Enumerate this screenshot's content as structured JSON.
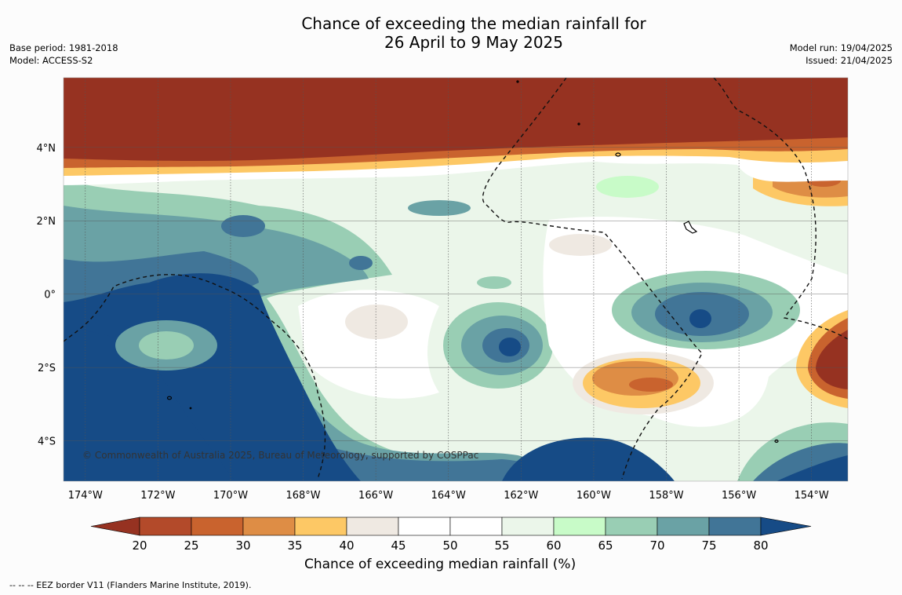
{
  "title": {
    "line1": "Chance of exceeding the median rainfall for",
    "line2": "26 April to 9 May 2025"
  },
  "meta_left": {
    "base_period": "Base period: 1981-2018",
    "model": "Model: ACCESS-S2"
  },
  "meta_right": {
    "model_run": "Model run: 19/04/2025",
    "issued": "Issued: 21/04/2025"
  },
  "map": {
    "lon_range": [
      -174.6,
      -153.0
    ],
    "lat_range": [
      -5.1,
      5.9
    ],
    "lon_ticks": [
      "174°W",
      "172°W",
      "170°W",
      "168°W",
      "166°W",
      "164°W",
      "162°W",
      "160°W",
      "158°W",
      "156°W",
      "154°W"
    ],
    "lat_ticks": [
      "4°N",
      "2°N",
      "0°",
      "2°S",
      "4°S"
    ],
    "copyright": "© Commonwealth of Australia 2025, Bureau of Meteorology, supported by COSPPac"
  },
  "colorbar": {
    "title": "Chance of exceeding median rainfall (%)",
    "ticks": [
      "20",
      "25",
      "30",
      "35",
      "40",
      "45",
      "50",
      "55",
      "60",
      "65",
      "70",
      "75",
      "80"
    ],
    "colors": [
      "#963221",
      "#b34a2a",
      "#c9632e",
      "#de8d45",
      "#fdc865",
      "#efe9e2",
      "#ffffff",
      "#ffffff",
      "#ebf6ea",
      "#c8fbc8",
      "#99ceb4",
      "#6aa2a5",
      "#417597",
      "#164b86"
    ]
  },
  "footnote": "--  --  -- EEZ border V11 (Flanders Marine Institute, 2019)."
}
